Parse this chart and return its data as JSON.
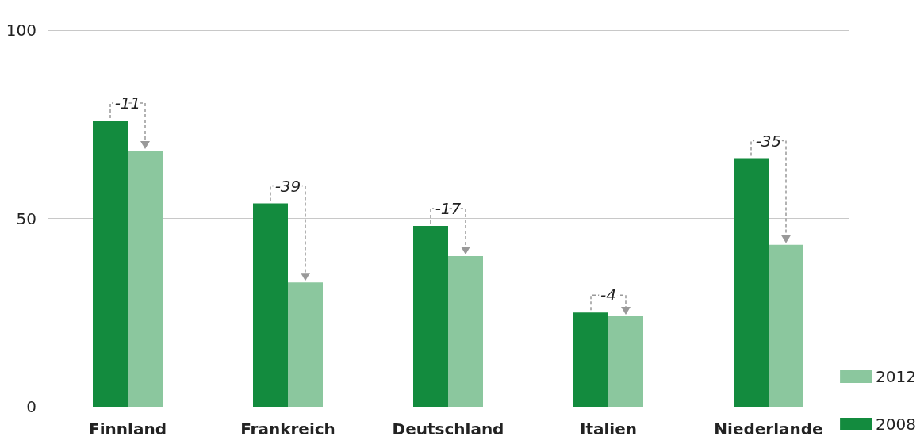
{
  "chart_data": {
    "type": "bar",
    "categories": [
      "Finnland",
      "Frankreich",
      "Deutschland",
      "Italien",
      "Niederlande"
    ],
    "series": [
      {
        "name": "2008",
        "color": "#138b3e",
        "values": [
          76,
          54,
          48,
          25,
          66
        ]
      },
      {
        "name": "2012",
        "color": "#8bc79e",
        "values": [
          68,
          33,
          40,
          24,
          43
        ]
      }
    ],
    "ylim": [
      0,
      100
    ],
    "yticks": [
      0,
      50,
      100
    ],
    "grid": "y",
    "legend": "bottom right",
    "annotations": [
      {
        "text": "-11",
        "x": "Finnland",
        "y": 76
      },
      {
        "text": "-39",
        "x": "Frankreich",
        "y": 54
      },
      {
        "text": "-17",
        "x": "Deutschland",
        "y": 48
      },
      {
        "text": "-4",
        "x": "Italien",
        "y": 25
      },
      {
        "text": "-35",
        "x": "Niederlande",
        "y": 66
      }
    ]
  }
}
